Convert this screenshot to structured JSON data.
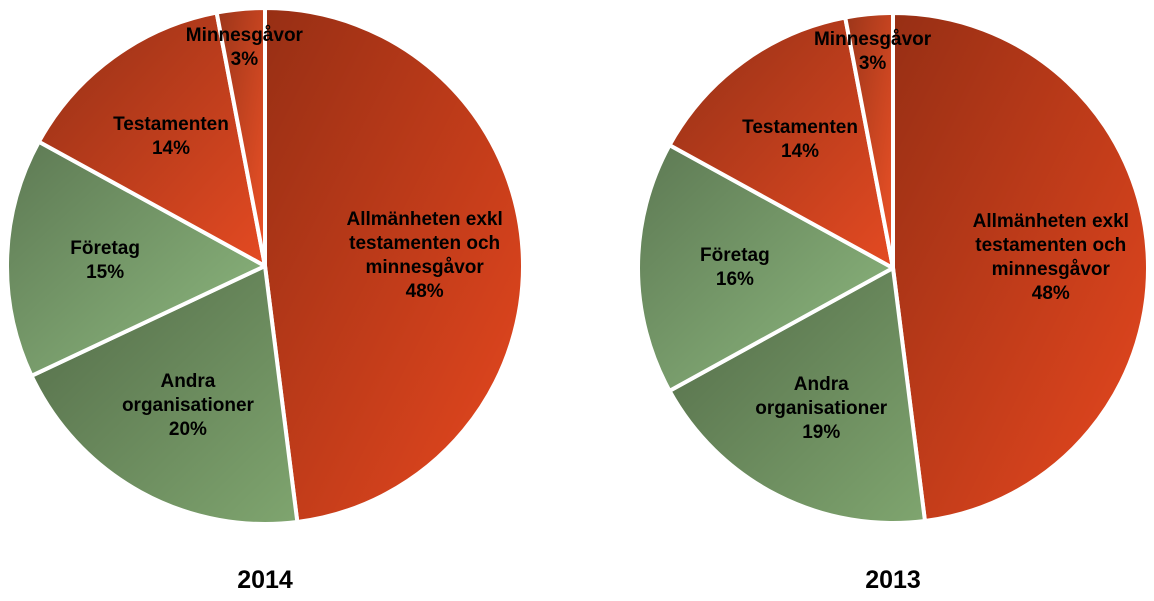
{
  "chart_data": [
    {
      "type": "pie",
      "title": "2014",
      "categories": [
        "Allmänheten exkl testamenten och minnesgåvor",
        "Andra organisationer",
        "Företag",
        "Testamenten",
        "Minnesgåvor"
      ],
      "values": [
        48,
        20,
        15,
        14,
        3
      ],
      "value_labels": [
        "48%",
        "20%",
        "15%",
        "14%",
        "3%"
      ],
      "colors": [
        "#e8481f",
        "#7fa56f",
        "#8fba80",
        "#e44a22",
        "#ef5227"
      ]
    },
    {
      "type": "pie",
      "title": "2013",
      "categories": [
        "Allmänheten exkl testamenten och minnesgåvor",
        "Andra organisationer",
        "Företag",
        "Testamenten",
        "Minnesgåvor"
      ],
      "values": [
        48,
        19,
        16,
        14,
        3
      ],
      "value_labels": [
        "48%",
        "19%",
        "16%",
        "14%",
        "3%"
      ],
      "colors": [
        "#e8481f",
        "#7fa56f",
        "#8fba80",
        "#e44a22",
        "#ef5227"
      ]
    }
  ]
}
